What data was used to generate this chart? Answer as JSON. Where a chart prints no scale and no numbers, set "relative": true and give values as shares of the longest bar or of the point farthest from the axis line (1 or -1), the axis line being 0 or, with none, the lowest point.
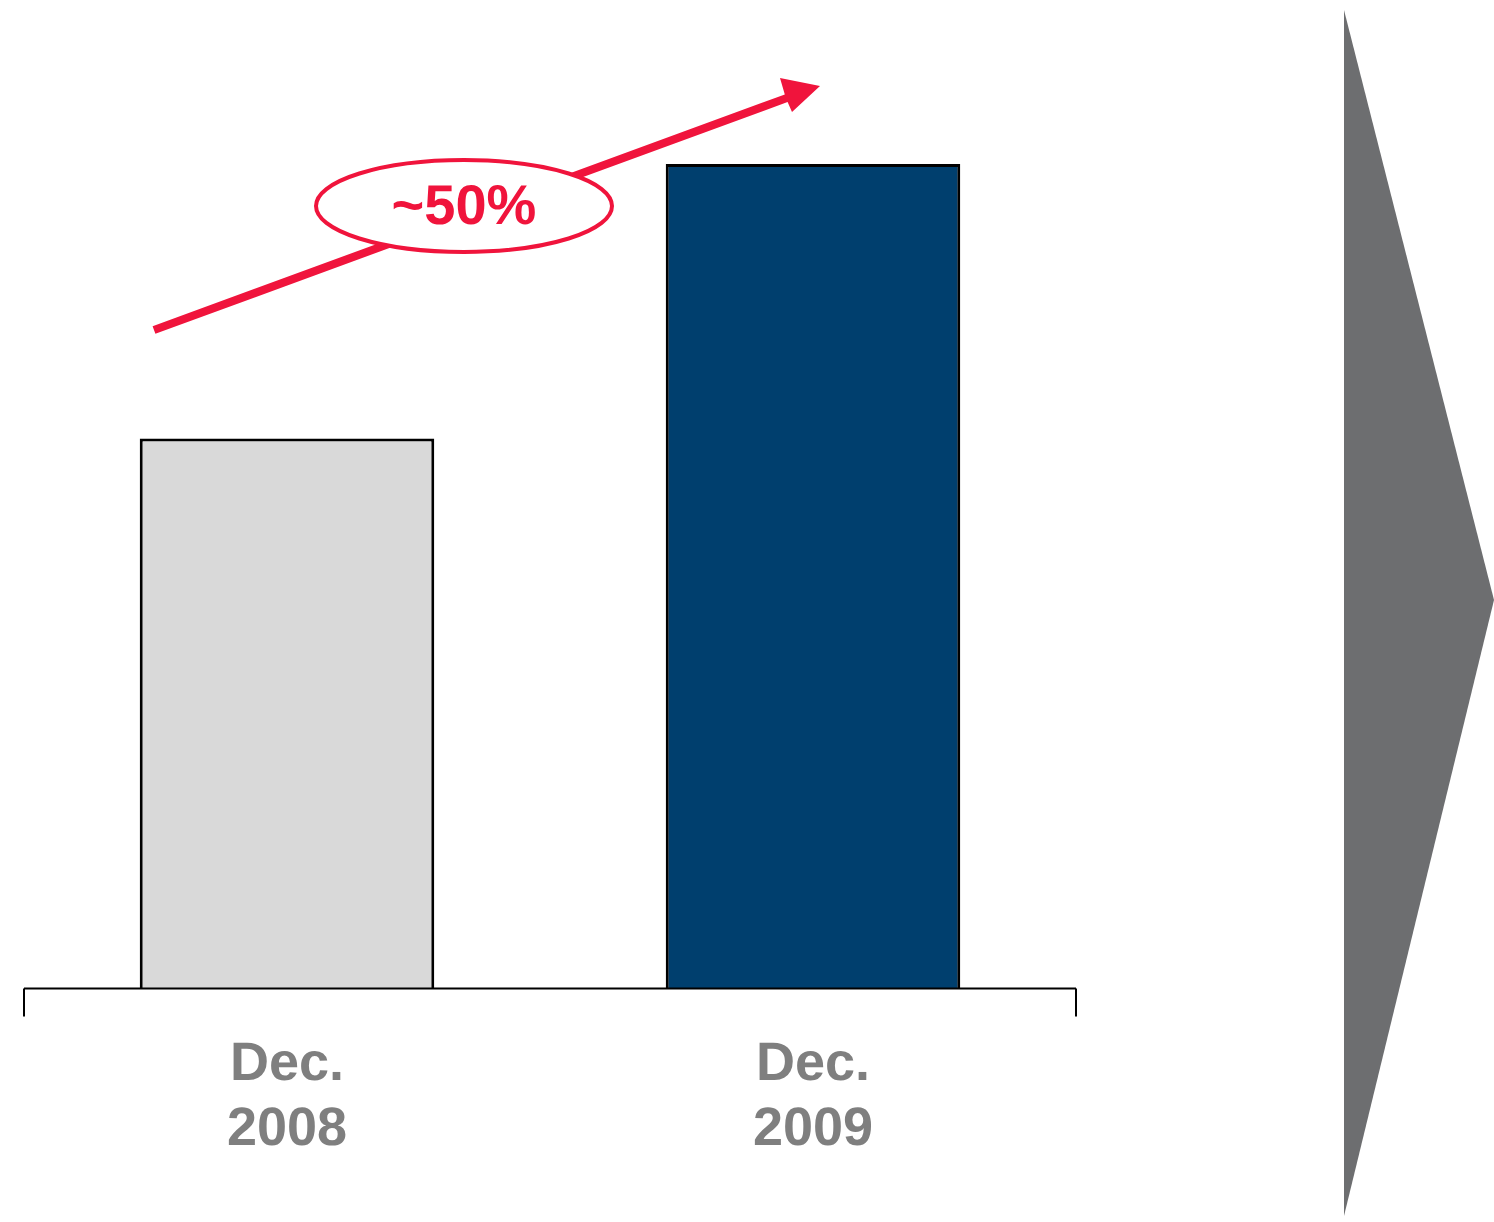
{
  "chart_data": {
    "type": "bar",
    "relative": true,
    "categories": [
      "Dec.\n2008",
      "Dec.\n2009"
    ],
    "values": [
      0.667,
      1
    ],
    "colors": [
      "#d9d9d9",
      "#003f6e"
    ],
    "annotations": [
      "~50%"
    ],
    "grid": false,
    "legend": false
  }
}
